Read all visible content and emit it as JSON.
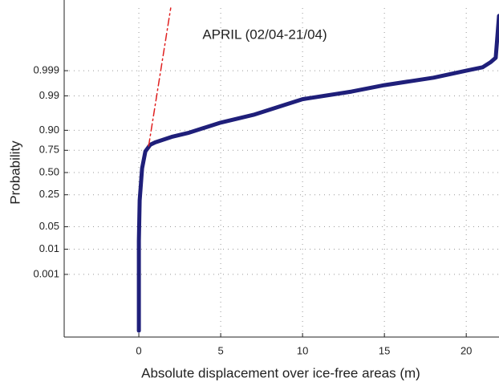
{
  "chart_data": {
    "type": "probability",
    "annotation": "APRIL (02/04-21/04)",
    "xlabel": "Absolute displacement over ice-free areas (m)",
    "ylabel": "Probability",
    "xlim": [
      -4.56,
      22
    ],
    "xticks": [
      0,
      5,
      10,
      15,
      20
    ],
    "ylim": [
      3e-07,
      0.9999997
    ],
    "yticks": [
      0.001,
      0.01,
      0.05,
      0.25,
      {
        "value": 0.5,
        "label": "0.50"
      },
      0.75,
      {
        "value": 0.9,
        "label": "0.90"
      },
      0.99,
      0.999
    ],
    "grid": true,
    "series": [
      {
        "color": "#1f1f7a",
        "x": [
          0,
          0,
          0.05,
          0.2,
          0.4,
          0.7,
          1,
          2,
          3,
          5,
          7,
          10,
          13,
          15,
          18,
          20,
          21,
          21.5,
          21.8,
          22
        ],
        "values": [
          8e-07,
          0.019,
          0.2,
          0.55,
          0.74,
          0.8,
          0.82,
          0.86,
          0.885,
          0.935,
          0.96,
          0.987,
          0.993,
          0.996,
          0.998,
          0.999,
          0.9993,
          0.9996,
          0.99975,
          0.999999
        ]
      },
      {
        "color": "#e02020",
        "dash": true,
        "x": [
          0.6,
          1.95
        ],
        "values": [
          0.79,
          0.9999997
        ]
      }
    ]
  }
}
